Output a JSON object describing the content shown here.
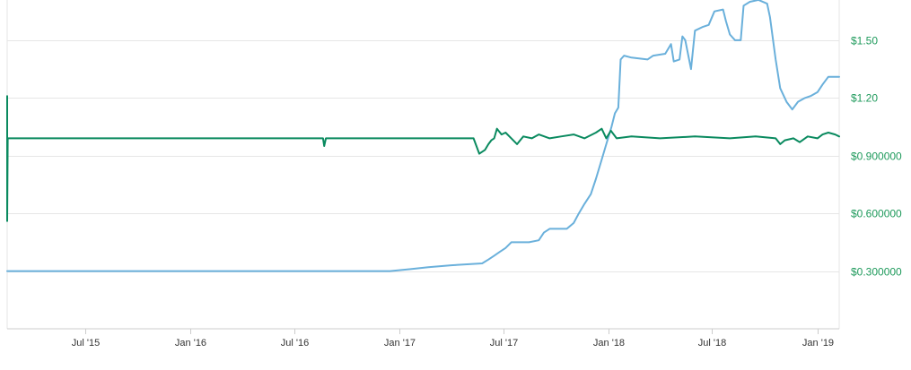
{
  "chart_data": {
    "type": "line",
    "title": "",
    "xlabel": "",
    "ylabel": "",
    "grid": true,
    "legend": "none",
    "x_range": [
      "2015-02-15",
      "2019-02-08"
    ],
    "y_range": [
      0,
      1.7
    ],
    "x_ticks": [
      {
        "label": "Jul '15",
        "date": "2015-07-01"
      },
      {
        "label": "Jan '16",
        "date": "2016-01-01"
      },
      {
        "label": "Jul '16",
        "date": "2016-07-01"
      },
      {
        "label": "Jan '17",
        "date": "2017-01-01"
      },
      {
        "label": "Jul '17",
        "date": "2017-07-01"
      },
      {
        "label": "Jan '18",
        "date": "2018-01-01"
      },
      {
        "label": "Jul '18",
        "date": "2018-07-01"
      },
      {
        "label": "Jan '19",
        "date": "2019-01-01"
      }
    ],
    "y_ticks": [
      {
        "label": "$0.300000",
        "value": 0.3
      },
      {
        "label": "$0.600000",
        "value": 0.6
      },
      {
        "label": "$0.900000",
        "value": 0.9
      },
      {
        "label": "$1.20",
        "value": 1.2
      },
      {
        "label": "$1.50",
        "value": 1.5
      }
    ],
    "series": [
      {
        "color": "#6ab0db",
        "points": [
          [
            "2015-02-15",
            0.3
          ],
          [
            "2016-06-01",
            0.3
          ],
          [
            "2016-12-15",
            0.3
          ],
          [
            "2017-01-20",
            0.31
          ],
          [
            "2017-02-20",
            0.32
          ],
          [
            "2017-04-01",
            0.33
          ],
          [
            "2017-05-25",
            0.34
          ],
          [
            "2017-06-05",
            0.36
          ],
          [
            "2017-06-15",
            0.38
          ],
          [
            "2017-06-25",
            0.4
          ],
          [
            "2017-07-05",
            0.42
          ],
          [
            "2017-07-15",
            0.45
          ],
          [
            "2017-08-15",
            0.45
          ],
          [
            "2017-09-01",
            0.46
          ],
          [
            "2017-09-10",
            0.5
          ],
          [
            "2017-09-20",
            0.52
          ],
          [
            "2017-10-20",
            0.52
          ],
          [
            "2017-11-01",
            0.55
          ],
          [
            "2017-11-10",
            0.6
          ],
          [
            "2017-11-20",
            0.65
          ],
          [
            "2017-12-01",
            0.7
          ],
          [
            "2017-12-10",
            0.78
          ],
          [
            "2017-12-20",
            0.88
          ],
          [
            "2017-12-28",
            0.96
          ],
          [
            "2018-01-01",
            1.0
          ],
          [
            "2018-01-06",
            1.05
          ],
          [
            "2018-01-12",
            1.12
          ],
          [
            "2018-01-18",
            1.15
          ],
          [
            "2018-01-22",
            1.4
          ],
          [
            "2018-01-28",
            1.42
          ],
          [
            "2018-02-10",
            1.41
          ],
          [
            "2018-03-10",
            1.4
          ],
          [
            "2018-03-20",
            1.42
          ],
          [
            "2018-04-10",
            1.43
          ],
          [
            "2018-04-20",
            1.48
          ],
          [
            "2018-04-25",
            1.39
          ],
          [
            "2018-05-05",
            1.4
          ],
          [
            "2018-05-10",
            1.52
          ],
          [
            "2018-05-15",
            1.5
          ],
          [
            "2018-05-25",
            1.35
          ],
          [
            "2018-06-01",
            1.55
          ],
          [
            "2018-06-15",
            1.57
          ],
          [
            "2018-06-25",
            1.58
          ],
          [
            "2018-07-05",
            1.65
          ],
          [
            "2018-07-20",
            1.66
          ],
          [
            "2018-07-25",
            1.6
          ],
          [
            "2018-08-01",
            1.53
          ],
          [
            "2018-08-10",
            1.5
          ],
          [
            "2018-08-20",
            1.5
          ],
          [
            "2018-08-25",
            1.68
          ],
          [
            "2018-09-05",
            1.7
          ],
          [
            "2018-09-20",
            1.71
          ],
          [
            "2018-10-05",
            1.69
          ],
          [
            "2018-10-10",
            1.62
          ],
          [
            "2018-10-20",
            1.4
          ],
          [
            "2018-10-28",
            1.25
          ],
          [
            "2018-11-08",
            1.18
          ],
          [
            "2018-11-18",
            1.14
          ],
          [
            "2018-11-28",
            1.18
          ],
          [
            "2018-12-10",
            1.2
          ],
          [
            "2018-12-20",
            1.21
          ],
          [
            "2019-01-01",
            1.23
          ],
          [
            "2019-01-10",
            1.27
          ],
          [
            "2019-01-20",
            1.31
          ],
          [
            "2019-02-08",
            1.31
          ]
        ]
      },
      {
        "color": "#0a8a5f",
        "points": [
          [
            "2015-02-15",
            1.21
          ],
          [
            "2015-02-15",
            0.56
          ],
          [
            "2015-02-16",
            0.99
          ],
          [
            "2016-08-20",
            0.99
          ],
          [
            "2016-08-22",
            0.95
          ],
          [
            "2016-08-25",
            0.99
          ],
          [
            "2017-05-10",
            0.99
          ],
          [
            "2017-05-20",
            0.91
          ],
          [
            "2017-05-30",
            0.93
          ],
          [
            "2017-06-05",
            0.96
          ],
          [
            "2017-06-10",
            0.98
          ],
          [
            "2017-06-15",
            0.99
          ],
          [
            "2017-06-20",
            1.04
          ],
          [
            "2017-06-28",
            1.01
          ],
          [
            "2017-07-05",
            1.02
          ],
          [
            "2017-07-15",
            0.99
          ],
          [
            "2017-07-25",
            0.96
          ],
          [
            "2017-08-05",
            1.0
          ],
          [
            "2017-08-20",
            0.99
          ],
          [
            "2017-09-01",
            1.01
          ],
          [
            "2017-09-20",
            0.99
          ],
          [
            "2017-10-10",
            1.0
          ],
          [
            "2017-11-01",
            1.01
          ],
          [
            "2017-11-20",
            0.99
          ],
          [
            "2017-12-10",
            1.02
          ],
          [
            "2017-12-20",
            1.04
          ],
          [
            "2017-12-28",
            0.99
          ],
          [
            "2018-01-05",
            1.03
          ],
          [
            "2018-01-15",
            0.99
          ],
          [
            "2018-02-10",
            1.0
          ],
          [
            "2018-04-01",
            0.99
          ],
          [
            "2018-06-01",
            1.0
          ],
          [
            "2018-08-01",
            0.99
          ],
          [
            "2018-09-15",
            1.0
          ],
          [
            "2018-10-20",
            0.99
          ],
          [
            "2018-10-28",
            0.96
          ],
          [
            "2018-11-05",
            0.98
          ],
          [
            "2018-11-20",
            0.99
          ],
          [
            "2018-12-01",
            0.97
          ],
          [
            "2018-12-15",
            1.0
          ],
          [
            "2019-01-01",
            0.99
          ],
          [
            "2019-01-10",
            1.01
          ],
          [
            "2019-01-20",
            1.02
          ],
          [
            "2019-02-01",
            1.01
          ],
          [
            "2019-02-08",
            1.0
          ]
        ]
      }
    ]
  }
}
